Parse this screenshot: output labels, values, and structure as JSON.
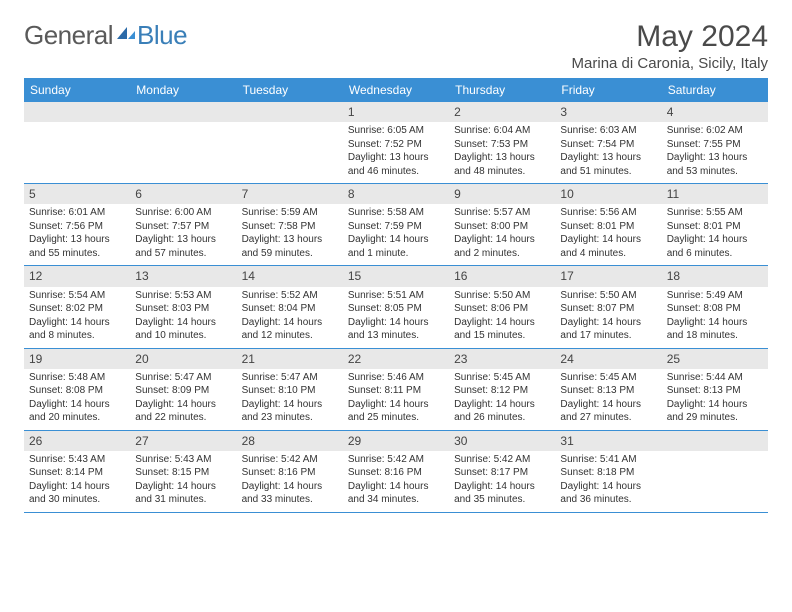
{
  "brand": {
    "part1": "General",
    "part2": "Blue"
  },
  "title": "May 2024",
  "location": "Marina di Caronia, Sicily, Italy",
  "weekdays": [
    "Sunday",
    "Monday",
    "Tuesday",
    "Wednesday",
    "Thursday",
    "Friday",
    "Saturday"
  ],
  "colors": {
    "header_bg": "#3a8fd4",
    "daynum_bg": "#e8e8e8",
    "rule": "#3a8fd4",
    "text": "#333333",
    "logo_gray": "#5a5a5a",
    "logo_blue": "#3a7fb8"
  },
  "weeks": [
    [
      null,
      null,
      null,
      {
        "num": "1",
        "sunrise": "6:05 AM",
        "sunset": "7:52 PM",
        "dl1": "Daylight: 13 hours",
        "dl2": "and 46 minutes."
      },
      {
        "num": "2",
        "sunrise": "6:04 AM",
        "sunset": "7:53 PM",
        "dl1": "Daylight: 13 hours",
        "dl2": "and 48 minutes."
      },
      {
        "num": "3",
        "sunrise": "6:03 AM",
        "sunset": "7:54 PM",
        "dl1": "Daylight: 13 hours",
        "dl2": "and 51 minutes."
      },
      {
        "num": "4",
        "sunrise": "6:02 AM",
        "sunset": "7:55 PM",
        "dl1": "Daylight: 13 hours",
        "dl2": "and 53 minutes."
      }
    ],
    [
      {
        "num": "5",
        "sunrise": "6:01 AM",
        "sunset": "7:56 PM",
        "dl1": "Daylight: 13 hours",
        "dl2": "and 55 minutes."
      },
      {
        "num": "6",
        "sunrise": "6:00 AM",
        "sunset": "7:57 PM",
        "dl1": "Daylight: 13 hours",
        "dl2": "and 57 minutes."
      },
      {
        "num": "7",
        "sunrise": "5:59 AM",
        "sunset": "7:58 PM",
        "dl1": "Daylight: 13 hours",
        "dl2": "and 59 minutes."
      },
      {
        "num": "8",
        "sunrise": "5:58 AM",
        "sunset": "7:59 PM",
        "dl1": "Daylight: 14 hours",
        "dl2": "and 1 minute."
      },
      {
        "num": "9",
        "sunrise": "5:57 AM",
        "sunset": "8:00 PM",
        "dl1": "Daylight: 14 hours",
        "dl2": "and 2 minutes."
      },
      {
        "num": "10",
        "sunrise": "5:56 AM",
        "sunset": "8:01 PM",
        "dl1": "Daylight: 14 hours",
        "dl2": "and 4 minutes."
      },
      {
        "num": "11",
        "sunrise": "5:55 AM",
        "sunset": "8:01 PM",
        "dl1": "Daylight: 14 hours",
        "dl2": "and 6 minutes."
      }
    ],
    [
      {
        "num": "12",
        "sunrise": "5:54 AM",
        "sunset": "8:02 PM",
        "dl1": "Daylight: 14 hours",
        "dl2": "and 8 minutes."
      },
      {
        "num": "13",
        "sunrise": "5:53 AM",
        "sunset": "8:03 PM",
        "dl1": "Daylight: 14 hours",
        "dl2": "and 10 minutes."
      },
      {
        "num": "14",
        "sunrise": "5:52 AM",
        "sunset": "8:04 PM",
        "dl1": "Daylight: 14 hours",
        "dl2": "and 12 minutes."
      },
      {
        "num": "15",
        "sunrise": "5:51 AM",
        "sunset": "8:05 PM",
        "dl1": "Daylight: 14 hours",
        "dl2": "and 13 minutes."
      },
      {
        "num": "16",
        "sunrise": "5:50 AM",
        "sunset": "8:06 PM",
        "dl1": "Daylight: 14 hours",
        "dl2": "and 15 minutes."
      },
      {
        "num": "17",
        "sunrise": "5:50 AM",
        "sunset": "8:07 PM",
        "dl1": "Daylight: 14 hours",
        "dl2": "and 17 minutes."
      },
      {
        "num": "18",
        "sunrise": "5:49 AM",
        "sunset": "8:08 PM",
        "dl1": "Daylight: 14 hours",
        "dl2": "and 18 minutes."
      }
    ],
    [
      {
        "num": "19",
        "sunrise": "5:48 AM",
        "sunset": "8:08 PM",
        "dl1": "Daylight: 14 hours",
        "dl2": "and 20 minutes."
      },
      {
        "num": "20",
        "sunrise": "5:47 AM",
        "sunset": "8:09 PM",
        "dl1": "Daylight: 14 hours",
        "dl2": "and 22 minutes."
      },
      {
        "num": "21",
        "sunrise": "5:47 AM",
        "sunset": "8:10 PM",
        "dl1": "Daylight: 14 hours",
        "dl2": "and 23 minutes."
      },
      {
        "num": "22",
        "sunrise": "5:46 AM",
        "sunset": "8:11 PM",
        "dl1": "Daylight: 14 hours",
        "dl2": "and 25 minutes."
      },
      {
        "num": "23",
        "sunrise": "5:45 AM",
        "sunset": "8:12 PM",
        "dl1": "Daylight: 14 hours",
        "dl2": "and 26 minutes."
      },
      {
        "num": "24",
        "sunrise": "5:45 AM",
        "sunset": "8:13 PM",
        "dl1": "Daylight: 14 hours",
        "dl2": "and 27 minutes."
      },
      {
        "num": "25",
        "sunrise": "5:44 AM",
        "sunset": "8:13 PM",
        "dl1": "Daylight: 14 hours",
        "dl2": "and 29 minutes."
      }
    ],
    [
      {
        "num": "26",
        "sunrise": "5:43 AM",
        "sunset": "8:14 PM",
        "dl1": "Daylight: 14 hours",
        "dl2": "and 30 minutes."
      },
      {
        "num": "27",
        "sunrise": "5:43 AM",
        "sunset": "8:15 PM",
        "dl1": "Daylight: 14 hours",
        "dl2": "and 31 minutes."
      },
      {
        "num": "28",
        "sunrise": "5:42 AM",
        "sunset": "8:16 PM",
        "dl1": "Daylight: 14 hours",
        "dl2": "and 33 minutes."
      },
      {
        "num": "29",
        "sunrise": "5:42 AM",
        "sunset": "8:16 PM",
        "dl1": "Daylight: 14 hours",
        "dl2": "and 34 minutes."
      },
      {
        "num": "30",
        "sunrise": "5:42 AM",
        "sunset": "8:17 PM",
        "dl1": "Daylight: 14 hours",
        "dl2": "and 35 minutes."
      },
      {
        "num": "31",
        "sunrise": "5:41 AM",
        "sunset": "8:18 PM",
        "dl1": "Daylight: 14 hours",
        "dl2": "and 36 minutes."
      },
      null
    ]
  ]
}
